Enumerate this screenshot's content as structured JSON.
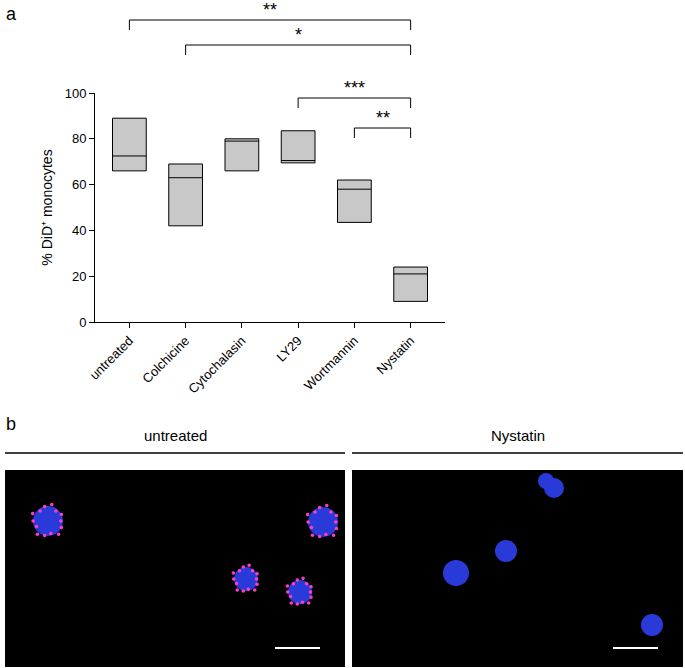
{
  "chart_data": {
    "type": "box",
    "panel_label": "a",
    "categories": [
      "untreated",
      "Colchicine",
      "Cytochalasin",
      "LY29",
      "Wortmannin",
      "Nystatin"
    ],
    "min": [
      66,
      42,
      66,
      69.5,
      43.5,
      9
    ],
    "median": [
      72.5,
      63,
      79,
      70.5,
      58,
      21
    ],
    "max": [
      89,
      69,
      80,
      83.5,
      62,
      24
    ],
    "y_label": "% DiD⁺ monocytes",
    "ylim": [
      0,
      100
    ],
    "yticks": [
      0,
      20,
      40,
      60,
      80,
      100
    ],
    "color": "#c8c8c8",
    "grid": false,
    "significance": [
      {
        "from": "untreated",
        "to": "Nystatin",
        "label": "**"
      },
      {
        "from": "Colchicine",
        "to": "Nystatin",
        "label": "*"
      },
      {
        "from": "LY29",
        "to": "Nystatin",
        "label": "***"
      },
      {
        "from": "Wortmannin",
        "to": "Nystatin",
        "label": "**"
      }
    ]
  },
  "images": {
    "panel_label": "b",
    "panels": [
      "untreated",
      "Nystatin"
    ]
  }
}
